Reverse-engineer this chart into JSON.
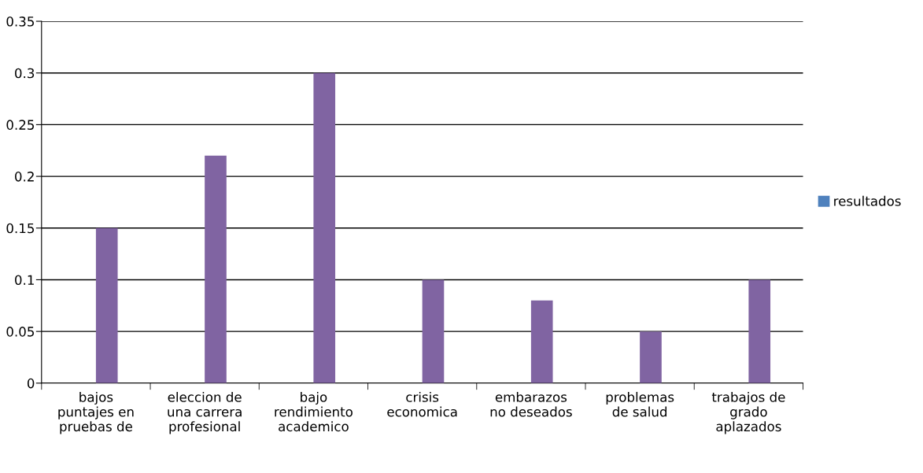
{
  "chart_data": {
    "type": "bar",
    "categories": [
      "bajos\npuntajes en\npruebas de",
      "eleccion de\nuna carrera\nprofesional",
      "bajo\nrendimiento\nacademico",
      "crisis\neconomica",
      "embarazos\nno deseados",
      "problemas\nde salud",
      "trabajos de\ngrado\naplazados"
    ],
    "series": [
      {
        "name": "resultados",
        "color": "#4f81bd",
        "values": [
          null,
          null,
          null,
          null,
          null,
          null,
          null
        ]
      },
      {
        "color": "#8064a2",
        "values": [
          0.15,
          0.22,
          0.3,
          0.1,
          0.08,
          0.05,
          0.1
        ]
      }
    ],
    "ylim": [
      0,
      0.35
    ],
    "yticks": [
      0,
      0.05,
      0.1,
      0.15,
      0.2,
      0.25,
      0.3,
      0.35
    ],
    "grid": "y",
    "legend": "right"
  }
}
